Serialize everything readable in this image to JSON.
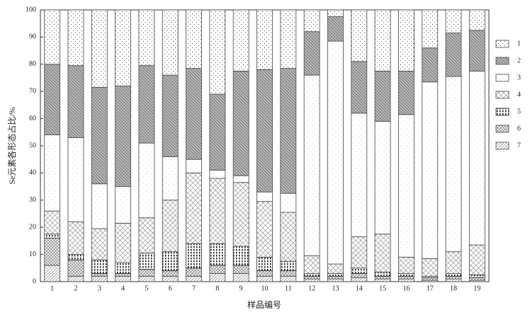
{
  "chart_data": {
    "type": "stacked_bar",
    "y_label": "Se元素各形态占比/%",
    "x_label": "样品编号",
    "categories": [
      "1",
      "2",
      "3",
      "4",
      "5",
      "6",
      "7",
      "8",
      "9",
      "10",
      "11",
      "12",
      "13",
      "14",
      "15",
      "16",
      "17",
      "18",
      "19"
    ],
    "series": [
      {
        "name": "1",
        "color": "#444444",
        "pattern": "sparse-dots",
        "values": [
          20,
          20.5,
          28.5,
          28,
          20.5,
          24,
          21.5,
          31,
          22.5,
          22,
          21.5,
          8,
          2.5,
          19,
          22.5,
          22.5,
          14,
          8.5,
          7.5
        ]
      },
      {
        "name": "2",
        "color": "#444444",
        "pattern": "dense-hatch",
        "values": [
          26,
          26.5,
          35.5,
          37,
          28.5,
          30,
          33.5,
          28,
          38.5,
          45,
          46,
          16,
          9,
          19,
          18.5,
          16,
          12.5,
          16,
          15
        ]
      },
      {
        "name": "3",
        "color": "#444444",
        "pattern": "fine-dots",
        "values": [
          28,
          31,
          16.5,
          13.5,
          27.5,
          16,
          5,
          3,
          2.5,
          3.5,
          7,
          66.5,
          82,
          45.5,
          41.5,
          52.5,
          65,
          64.5,
          64
        ]
      },
      {
        "name": "4",
        "color": "#444444",
        "pattern": "cross",
        "values": [
          8.5,
          12,
          11.5,
          14.5,
          13,
          19,
          26,
          24,
          23.5,
          20.5,
          18,
          6.5,
          3.5,
          11.5,
          14,
          6,
          6.5,
          8,
          11
        ]
      },
      {
        "name": "5",
        "color": "#222222",
        "pattern": "bold-dots",
        "values": [
          1.5,
          2,
          5,
          4,
          6,
          7,
          9,
          8,
          7,
          5,
          3.5,
          1,
          1,
          2,
          1.5,
          1,
          0.5,
          1,
          1
        ]
      },
      {
        "name": "6",
        "color": "#444444",
        "pattern": "dense-cross",
        "values": [
          10,
          6,
          1,
          1,
          2.5,
          2,
          3,
          3,
          3,
          2,
          2,
          1,
          1,
          1.5,
          1,
          1,
          1,
          1,
          1
        ]
      },
      {
        "name": "7",
        "color": "#444444",
        "pattern": "hatch",
        "values": [
          6,
          2,
          2,
          2,
          2,
          2,
          2,
          3,
          3,
          2,
          2,
          1,
          1,
          1.5,
          1,
          1,
          0.5,
          1,
          0.5
        ]
      }
    ],
    "ylim": [
      0,
      100
    ],
    "yticks": [
      0,
      10,
      20,
      30,
      40,
      50,
      60,
      70,
      80,
      90,
      100
    ]
  }
}
